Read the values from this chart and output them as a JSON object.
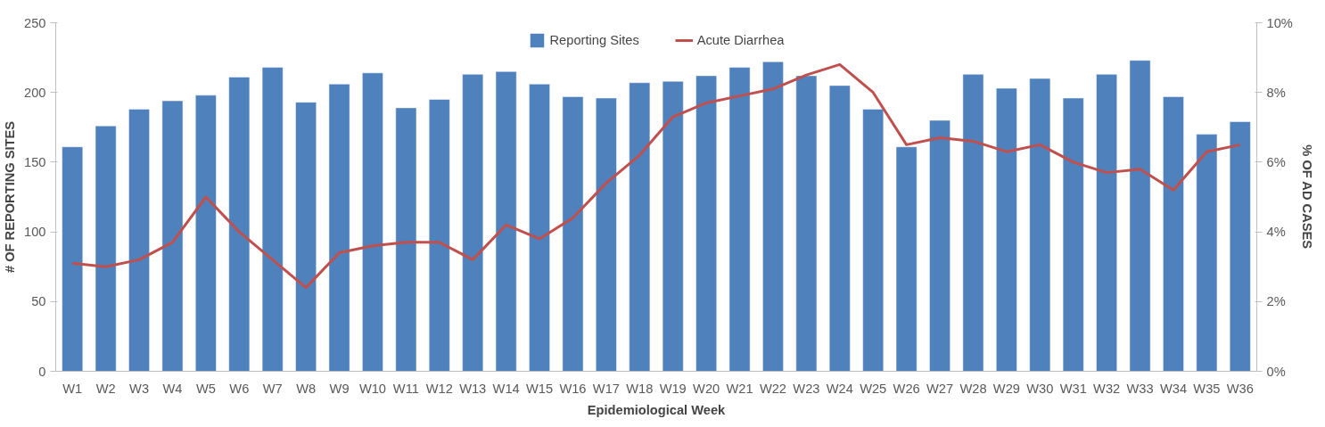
{
  "chart_data": {
    "type": "bar",
    "xlabel": "Epidemiological Week",
    "ylabel": "# OF REPORTING SITES",
    "y2label": "% OF AD CASES",
    "categories": [
      "W1",
      "W2",
      "W3",
      "W4",
      "W5",
      "W6",
      "W7",
      "W8",
      "W9",
      "W10",
      "W11",
      "W12",
      "W13",
      "W14",
      "W15",
      "W16",
      "W17",
      "W18",
      "W19",
      "W20",
      "W21",
      "W22",
      "W23",
      "W24",
      "W25",
      "W26",
      "W27",
      "W28",
      "W29",
      "W30",
      "W31",
      "W32",
      "W33",
      "W34",
      "W35",
      "W36"
    ],
    "series": [
      {
        "name": "Reporting Sites",
        "color": "#4f81bd",
        "values": [
          161,
          176,
          188,
          194,
          198,
          211,
          218,
          193,
          206,
          214,
          189,
          195,
          213,
          215,
          206,
          197,
          196,
          207,
          208,
          212,
          218,
          222,
          212,
          205,
          188,
          161,
          180,
          213,
          203,
          210,
          196,
          213,
          223,
          197,
          170,
          179
        ]
      },
      {
        "name": "Acute Diarrhea",
        "type": "line",
        "axis": "y2",
        "color": "#c0504d",
        "values": [
          3.1,
          3.0,
          3.2,
          3.7,
          5.0,
          4.0,
          3.2,
          2.4,
          3.4,
          3.6,
          3.7,
          3.7,
          3.2,
          4.2,
          3.8,
          4.4,
          5.4,
          6.2,
          7.3,
          7.7,
          7.9,
          8.1,
          8.5,
          8.8,
          8.0,
          6.5,
          6.7,
          6.6,
          6.3,
          6.5,
          6.0,
          5.7,
          5.8,
          5.2,
          6.3,
          6.5
        ]
      }
    ],
    "ylim": [
      0,
      250
    ],
    "yticks": [
      0,
      50,
      100,
      150,
      200,
      250
    ],
    "y2lim": [
      0,
      10
    ],
    "y2ticks": [
      {
        "value": 0,
        "label": "0%"
      },
      {
        "value": 2,
        "label": "2%"
      },
      {
        "value": 4,
        "label": "4%"
      },
      {
        "value": 6,
        "label": "6%"
      },
      {
        "value": 8,
        "label": "8%"
      },
      {
        "value": 10,
        "label": "10%"
      }
    ],
    "grid": false,
    "legend": "top",
    "marker": "none",
    "line_style": "solid"
  }
}
